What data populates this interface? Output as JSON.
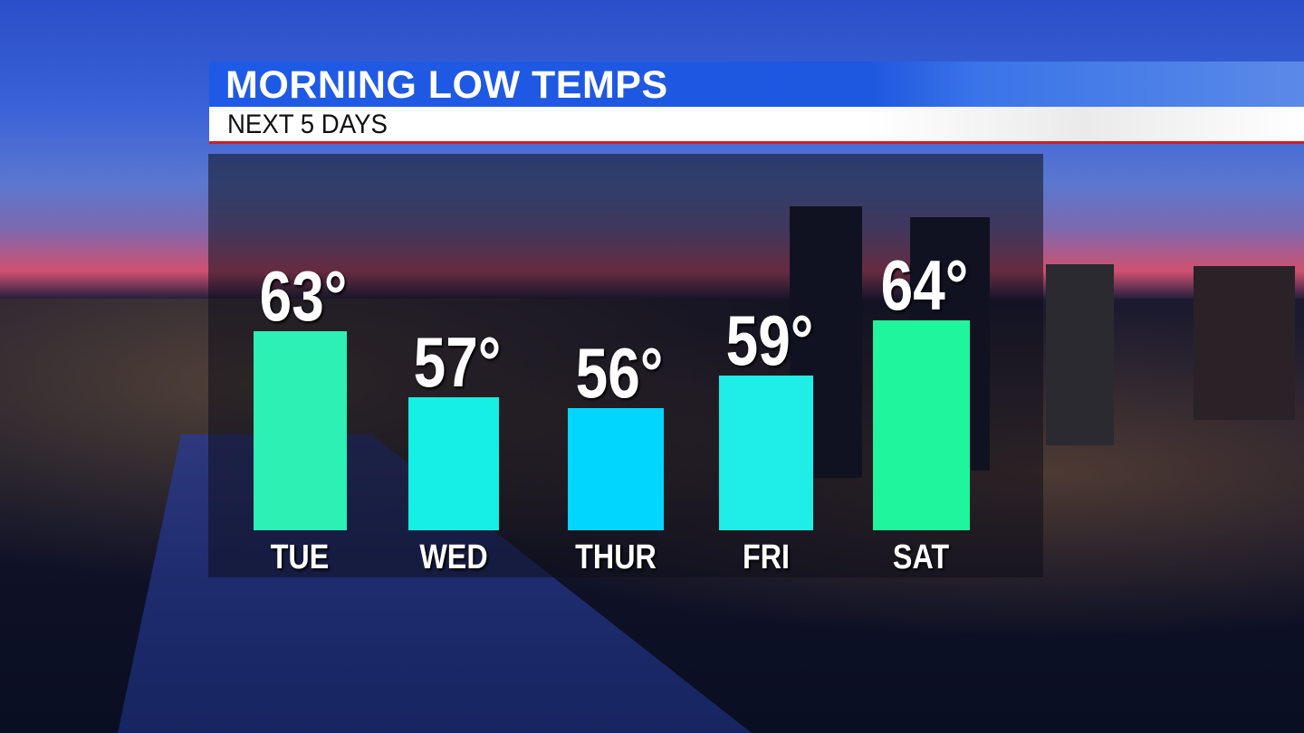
{
  "header": {
    "title": "MORNING LOW TEMPS",
    "subtitle": "NEXT 5 DAYS"
  },
  "chart_data": {
    "type": "bar",
    "title": "MORNING LOW TEMPS",
    "subtitle": "NEXT 5 DAYS",
    "categories": [
      "TUE",
      "WED",
      "THUR",
      "FRI",
      "SAT"
    ],
    "values": [
      63,
      57,
      56,
      59,
      64
    ],
    "data_labels": [
      "63°",
      "57°",
      "56°",
      "59°",
      "64°"
    ],
    "colors": [
      "#2cf0b4",
      "#16f0e4",
      "#00d6ff",
      "#1eeee6",
      "#1ef59c"
    ],
    "grid": false,
    "legend": "none"
  }
}
